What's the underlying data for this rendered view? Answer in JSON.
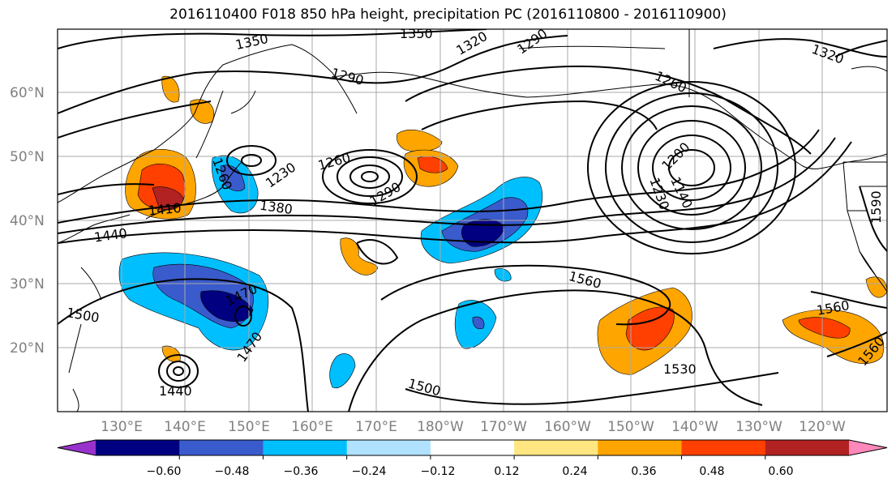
{
  "title": "2016110400 F018 850 hPa height, precipitation PC (2016110800 - 2016110900)",
  "lon_labels": [
    "130°E",
    "140°E",
    "150°E",
    "160°E",
    "170°E",
    "180°W",
    "170°W",
    "160°W",
    "150°W",
    "140°W",
    "130°W",
    "120°W"
  ],
  "lat_labels": [
    "60°N",
    "50°N",
    "40°N",
    "30°N",
    "20°N"
  ],
  "contour_labels": [
    "1350",
    "1350",
    "1320",
    "1290",
    "1320",
    "1290",
    "1260",
    "1260",
    "1230",
    "1200",
    "1140",
    "1230",
    "1380",
    "1290",
    "1260",
    "1410",
    "1440",
    "1470",
    "1470",
    "1500",
    "1440",
    "1500",
    "1530",
    "1560",
    "1560",
    "1560",
    "1590"
  ],
  "colorbar": {
    "colors": [
      "#9932CC",
      "#000080",
      "#3A5BCC",
      "#00BFFF",
      "#B0E2FF",
      "#FFFFFF",
      "#FFE680",
      "#FFA500",
      "#FF4000",
      "#B22222",
      "#FF88BB"
    ],
    "ticks": [
      "−0.60",
      "−0.48",
      "−0.36",
      "−0.24",
      "−0.12",
      "0.12",
      "0.24",
      "0.36",
      "0.48",
      "0.60"
    ]
  }
}
